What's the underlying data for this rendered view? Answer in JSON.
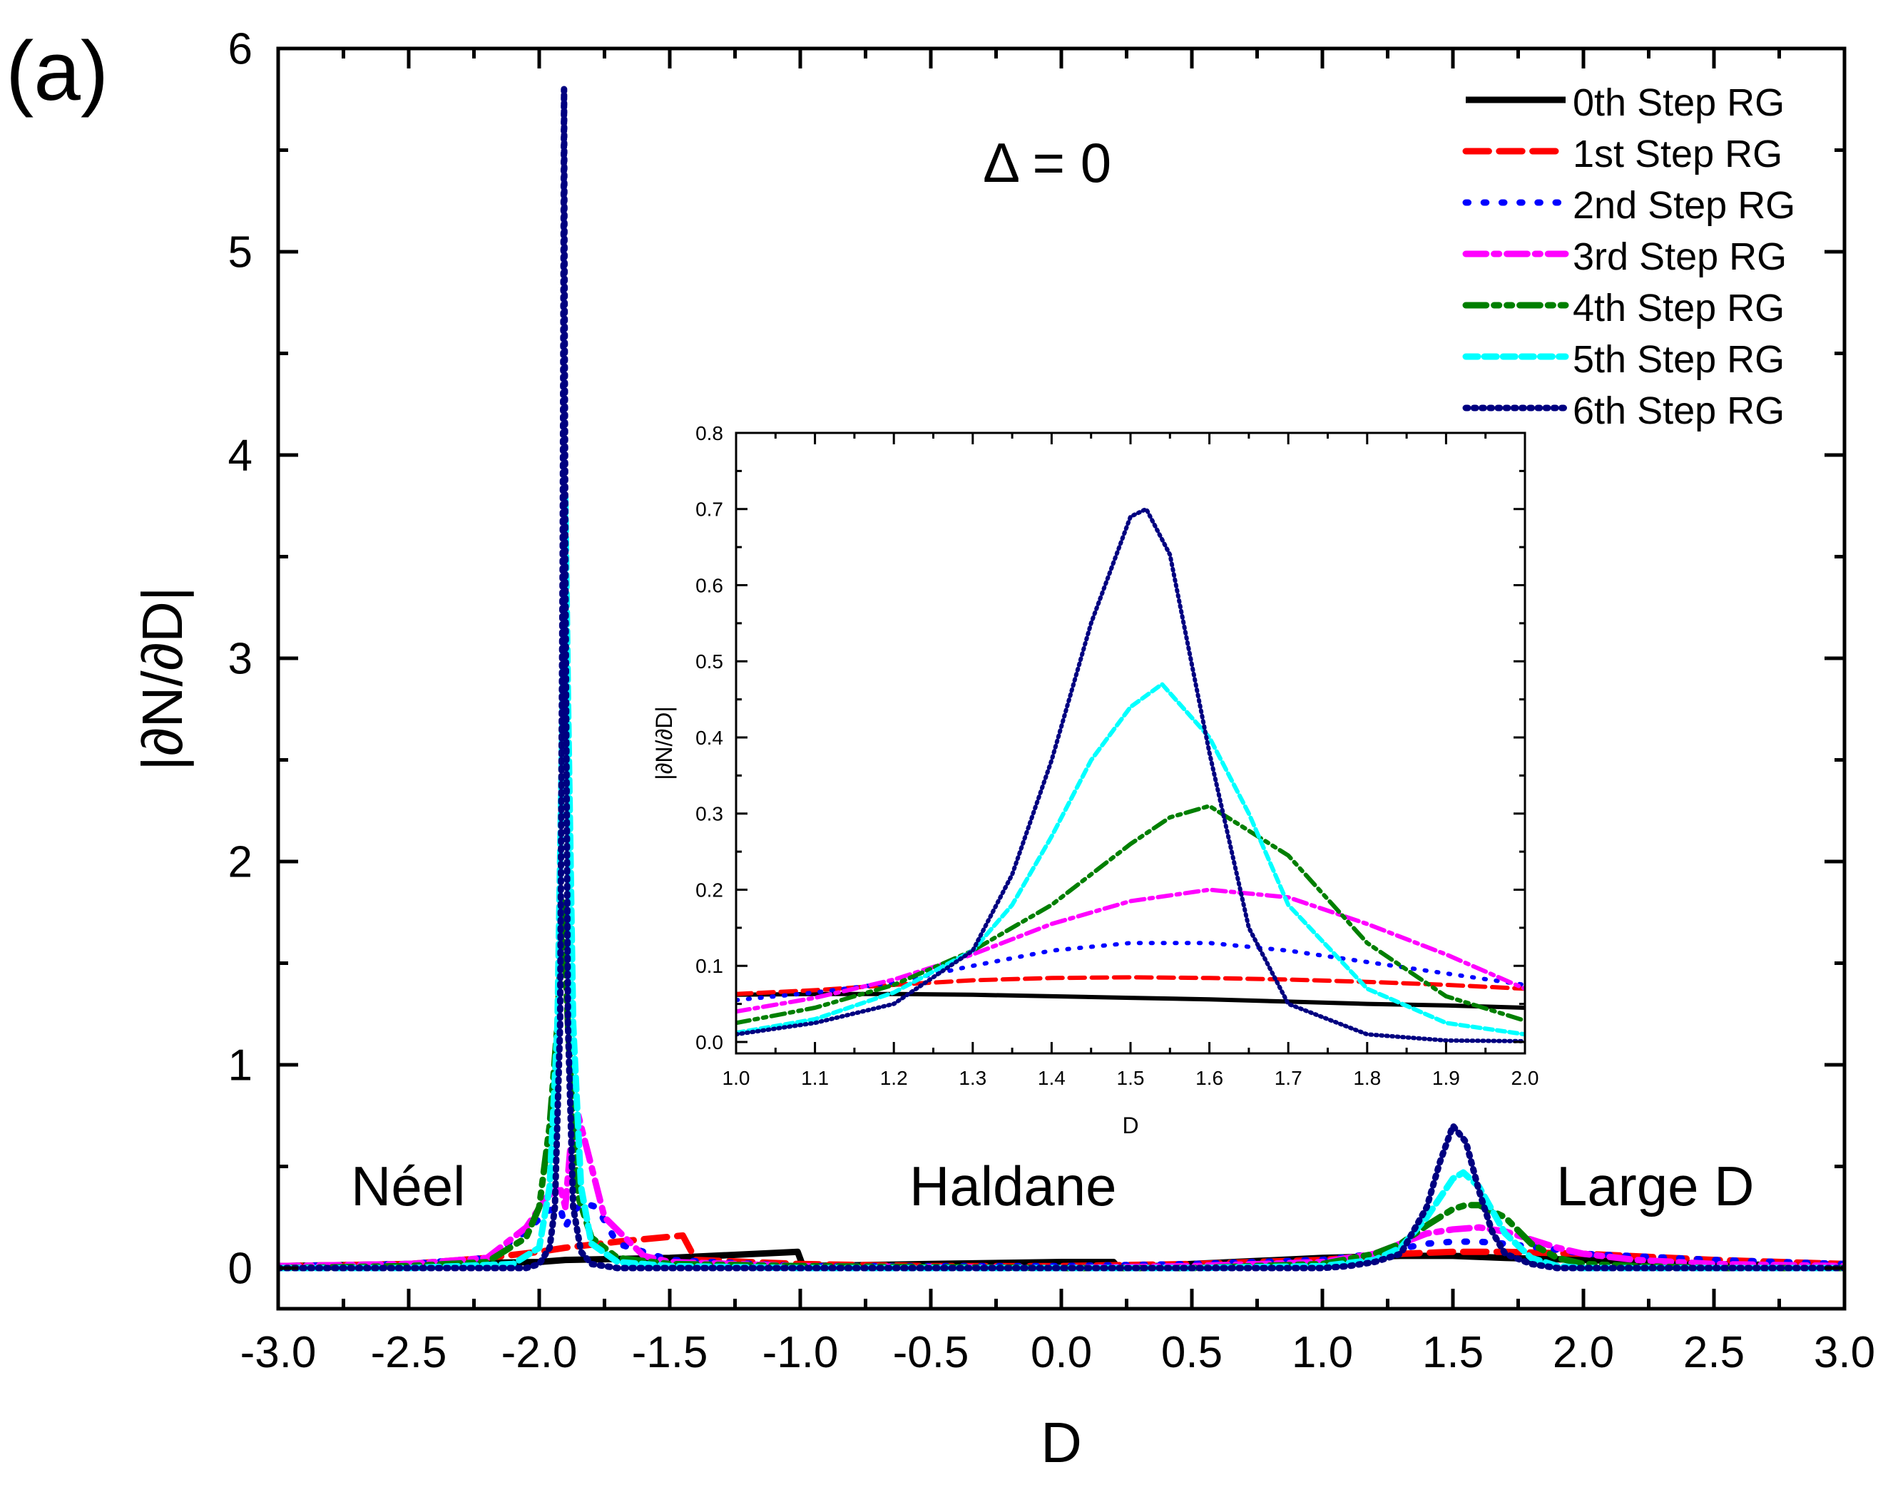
{
  "panel_label": "(a)",
  "annotation": "Δ = 0",
  "phase_labels": [
    "Néel",
    "Haldane",
    "Large D"
  ],
  "colors": {
    "s0": "#000000",
    "s1": "#ff0000",
    "s2": "#0000ff",
    "s3": "#ff00ff",
    "s4": "#007f00",
    "s5": "#00ffff",
    "s6": "#000080"
  },
  "chart_data": [
    {
      "id": "main",
      "type": "line",
      "xlabel": "D",
      "ylabel": "|∂N/∂D|",
      "xlim": [
        -3.0,
        3.0
      ],
      "ylim": [
        -0.2,
        6.0
      ],
      "xticks": [
        -3.0,
        -2.5,
        -2.0,
        -1.5,
        -1.0,
        -0.5,
        0.0,
        0.5,
        1.0,
        1.5,
        2.0,
        2.5,
        3.0
      ],
      "xtick_labels": [
        "-3.0",
        "-2.5",
        "-2.0",
        "-1.5",
        "-1.0",
        "-0.5",
        "0.0",
        "0.5",
        "1.0",
        "1.5",
        "2.0",
        "2.5",
        "3.0"
      ],
      "yticks": [
        0,
        1,
        2,
        3,
        4,
        5,
        6
      ],
      "ytick_labels": [
        "0",
        "1",
        "2",
        "3",
        "4",
        "5",
        "6"
      ],
      "legend": "top-right",
      "series": [
        {
          "name": "0th  Step RG",
          "style": "solid",
          "x": [
            -3.0,
            -2.5,
            -2.0,
            -1.9,
            -1.5,
            -1.01,
            -0.99,
            -0.5,
            0.0,
            0.2,
            0.22,
            0.5,
            1.0,
            1.3,
            1.5,
            1.7,
            2.0,
            2.5,
            3.0
          ],
          "y": [
            0.01,
            0.02,
            0.03,
            0.04,
            0.05,
            0.08,
            0.01,
            0.02,
            0.03,
            0.03,
            0.0,
            0.02,
            0.05,
            0.06,
            0.06,
            0.05,
            0.04,
            0.02,
            0.01
          ]
        },
        {
          "name": "1st  Step RG",
          "style": "dash",
          "x": [
            -3.0,
            -2.5,
            -2.2,
            -2.0,
            -1.9,
            -1.7,
            -1.45,
            -1.4,
            -1.0,
            -0.5,
            0.0,
            0.5,
            1.0,
            1.3,
            1.5,
            1.7,
            2.0,
            2.5,
            3.0
          ],
          "y": [
            0.01,
            0.02,
            0.05,
            0.08,
            0.1,
            0.13,
            0.16,
            0.04,
            0.02,
            0.01,
            0.01,
            0.02,
            0.04,
            0.07,
            0.08,
            0.08,
            0.07,
            0.04,
            0.02
          ]
        },
        {
          "name": "2nd Step RG",
          "style": "dot",
          "x": [
            -3.0,
            -2.5,
            -2.2,
            -2.05,
            -1.97,
            -1.92,
            -1.9,
            -1.87,
            -1.83,
            -1.78,
            -1.7,
            -1.5,
            -1.0,
            -0.5,
            0.0,
            0.5,
            1.0,
            1.2,
            1.4,
            1.5,
            1.6,
            1.7,
            1.9,
            2.0,
            2.5,
            3.0
          ],
          "y": [
            0.01,
            0.02,
            0.05,
            0.18,
            0.28,
            0.3,
            0.2,
            0.28,
            0.32,
            0.3,
            0.12,
            0.04,
            0.01,
            0.01,
            0.01,
            0.02,
            0.04,
            0.07,
            0.12,
            0.13,
            0.13,
            0.12,
            0.09,
            0.07,
            0.04,
            0.02
          ]
        },
        {
          "name": "3rd  Step RG",
          "style": "dashdot",
          "x": [
            -3.0,
            -2.5,
            -2.2,
            -2.05,
            -1.97,
            -1.92,
            -1.9,
            -1.88,
            -1.85,
            -1.8,
            -1.75,
            -1.6,
            -1.5,
            -1.0,
            0.0,
            0.5,
            1.0,
            1.2,
            1.4,
            1.5,
            1.6,
            1.7,
            1.8,
            1.9,
            2.0,
            2.2,
            2.5,
            3.0
          ],
          "y": [
            0.01,
            0.02,
            0.05,
            0.2,
            0.35,
            0.4,
            0.3,
            0.6,
            0.75,
            0.5,
            0.25,
            0.06,
            0.03,
            0.01,
            0.0,
            0.01,
            0.03,
            0.07,
            0.17,
            0.19,
            0.2,
            0.18,
            0.14,
            0.1,
            0.07,
            0.04,
            0.02,
            0.01
          ]
        },
        {
          "name": "4th  Step RG",
          "style": "dashdotdot",
          "x": [
            -3.0,
            -2.5,
            -2.2,
            -2.05,
            -2.0,
            -1.96,
            -1.93,
            -1.91,
            -1.89,
            -1.87,
            -1.85,
            -1.8,
            -1.7,
            -1.5,
            -1.0,
            0.0,
            0.5,
            1.0,
            1.2,
            1.3,
            1.4,
            1.5,
            1.55,
            1.6,
            1.7,
            1.8,
            1.9,
            2.0,
            2.2,
            2.5,
            3.0
          ],
          "y": [
            0.0,
            0.01,
            0.03,
            0.15,
            0.3,
            0.7,
            1.2,
            1.8,
            1.2,
            0.7,
            0.35,
            0.15,
            0.05,
            0.02,
            0.01,
            0.0,
            0.0,
            0.02,
            0.07,
            0.12,
            0.21,
            0.29,
            0.31,
            0.31,
            0.25,
            0.12,
            0.05,
            0.02,
            0.01,
            0.0,
            0.0
          ]
        },
        {
          "name": "5th  Step RG",
          "style": "shortdash",
          "x": [
            -3.0,
            -2.5,
            -2.1,
            -2.0,
            -1.96,
            -1.93,
            -1.91,
            -1.9,
            -1.89,
            -1.87,
            -1.84,
            -1.8,
            -1.7,
            -1.5,
            -1.0,
            0.0,
            0.5,
            1.0,
            1.2,
            1.3,
            1.4,
            1.5,
            1.54,
            1.6,
            1.7,
            1.8,
            1.9,
            2.0,
            2.5,
            3.0
          ],
          "y": [
            0.0,
            0.0,
            0.02,
            0.1,
            0.4,
            1.2,
            2.8,
            3.8,
            2.8,
            1.2,
            0.4,
            0.12,
            0.03,
            0.01,
            0.0,
            0.0,
            0.0,
            0.01,
            0.04,
            0.1,
            0.25,
            0.44,
            0.47,
            0.4,
            0.17,
            0.05,
            0.01,
            0.0,
            0.0,
            0.0
          ]
        },
        {
          "name": "6th  Step RG",
          "style": "densedot",
          "x": [
            -3.0,
            -2.5,
            -2.05,
            -2.0,
            -1.96,
            -1.94,
            -1.92,
            -1.91,
            -1.905,
            -1.9,
            -1.89,
            -1.87,
            -1.84,
            -1.8,
            -1.7,
            -1.5,
            -1.0,
            0.0,
            0.5,
            1.0,
            1.1,
            1.2,
            1.3,
            1.4,
            1.45,
            1.5,
            1.55,
            1.6,
            1.65,
            1.7,
            1.8,
            1.9,
            2.0,
            2.5,
            3.0
          ],
          "y": [
            0.0,
            0.0,
            0.0,
            0.02,
            0.1,
            0.3,
            1.2,
            3.5,
            5.8,
            3.5,
            1.2,
            0.3,
            0.08,
            0.02,
            0.0,
            0.0,
            0.0,
            0.0,
            0.0,
            0.0,
            0.01,
            0.03,
            0.07,
            0.3,
            0.52,
            0.7,
            0.62,
            0.38,
            0.18,
            0.07,
            0.02,
            0.0,
            0.0,
            0.0,
            0.0
          ]
        }
      ]
    },
    {
      "id": "inset",
      "type": "line",
      "xlabel": "D",
      "ylabel": "|∂N/∂D|",
      "xlim": [
        1.0,
        2.0
      ],
      "ylim": [
        -0.015,
        0.8
      ],
      "xticks": [
        1.0,
        1.1,
        1.2,
        1.3,
        1.4,
        1.5,
        1.6,
        1.7,
        1.8,
        1.9,
        2.0
      ],
      "xtick_labels": [
        "1.0",
        "1.1",
        "1.2",
        "1.3",
        "1.4",
        "1.5",
        "1.6",
        "1.7",
        "1.8",
        "1.9",
        "2.0"
      ],
      "yticks": [
        0.0,
        0.1,
        0.2,
        0.3,
        0.4,
        0.5,
        0.6,
        0.7,
        0.8
      ],
      "ytick_labels": [
        "0.0",
        "0.1",
        "0.2",
        "0.3",
        "0.4",
        "0.5",
        "0.6",
        "0.7",
        "0.8"
      ],
      "series": [
        {
          "name": "0th  Step RG",
          "style": "solid",
          "x": [
            1.0,
            1.1,
            1.2,
            1.3,
            1.4,
            1.5,
            1.6,
            1.7,
            1.8,
            1.9,
            2.0
          ],
          "y": [
            0.062,
            0.063,
            0.063,
            0.062,
            0.06,
            0.058,
            0.056,
            0.053,
            0.05,
            0.048,
            0.045
          ]
        },
        {
          "name": "1st  Step RG",
          "style": "dash",
          "x": [
            1.0,
            1.1,
            1.2,
            1.3,
            1.4,
            1.5,
            1.6,
            1.7,
            1.8,
            1.9,
            2.0
          ],
          "y": [
            0.063,
            0.068,
            0.075,
            0.081,
            0.084,
            0.085,
            0.084,
            0.082,
            0.079,
            0.075,
            0.07
          ]
        },
        {
          "name": "2nd Step RG",
          "style": "dot",
          "x": [
            1.0,
            1.1,
            1.2,
            1.3,
            1.4,
            1.5,
            1.6,
            1.7,
            1.8,
            1.9,
            2.0
          ],
          "y": [
            0.055,
            0.065,
            0.078,
            0.1,
            0.12,
            0.13,
            0.13,
            0.12,
            0.105,
            0.09,
            0.075
          ]
        },
        {
          "name": "3rd  Step RG",
          "style": "dashdot",
          "x": [
            1.0,
            1.1,
            1.2,
            1.3,
            1.4,
            1.5,
            1.6,
            1.7,
            1.8,
            1.9,
            2.0
          ],
          "y": [
            0.04,
            0.058,
            0.082,
            0.115,
            0.155,
            0.185,
            0.2,
            0.19,
            0.155,
            0.115,
            0.07
          ]
        },
        {
          "name": "4th  Step RG",
          "style": "dashdotdot",
          "x": [
            1.0,
            1.1,
            1.2,
            1.3,
            1.4,
            1.5,
            1.55,
            1.6,
            1.7,
            1.8,
            1.9,
            2.0
          ],
          "y": [
            0.025,
            0.045,
            0.075,
            0.12,
            0.18,
            0.26,
            0.295,
            0.31,
            0.245,
            0.13,
            0.06,
            0.028
          ]
        },
        {
          "name": "5th  Step RG",
          "style": "shortdash",
          "x": [
            1.0,
            1.1,
            1.2,
            1.3,
            1.35,
            1.4,
            1.45,
            1.5,
            1.54,
            1.6,
            1.65,
            1.7,
            1.8,
            1.9,
            2.0
          ],
          "y": [
            0.012,
            0.03,
            0.065,
            0.12,
            0.18,
            0.27,
            0.37,
            0.44,
            0.47,
            0.4,
            0.3,
            0.18,
            0.07,
            0.025,
            0.01
          ]
        },
        {
          "name": "6th  Step RG",
          "style": "densedot",
          "x": [
            1.0,
            1.1,
            1.2,
            1.3,
            1.35,
            1.4,
            1.45,
            1.5,
            1.52,
            1.55,
            1.6,
            1.65,
            1.7,
            1.8,
            1.9,
            2.0
          ],
          "y": [
            0.01,
            0.025,
            0.05,
            0.12,
            0.22,
            0.37,
            0.55,
            0.69,
            0.7,
            0.64,
            0.38,
            0.15,
            0.05,
            0.01,
            0.002,
            0.001
          ]
        }
      ]
    }
  ]
}
